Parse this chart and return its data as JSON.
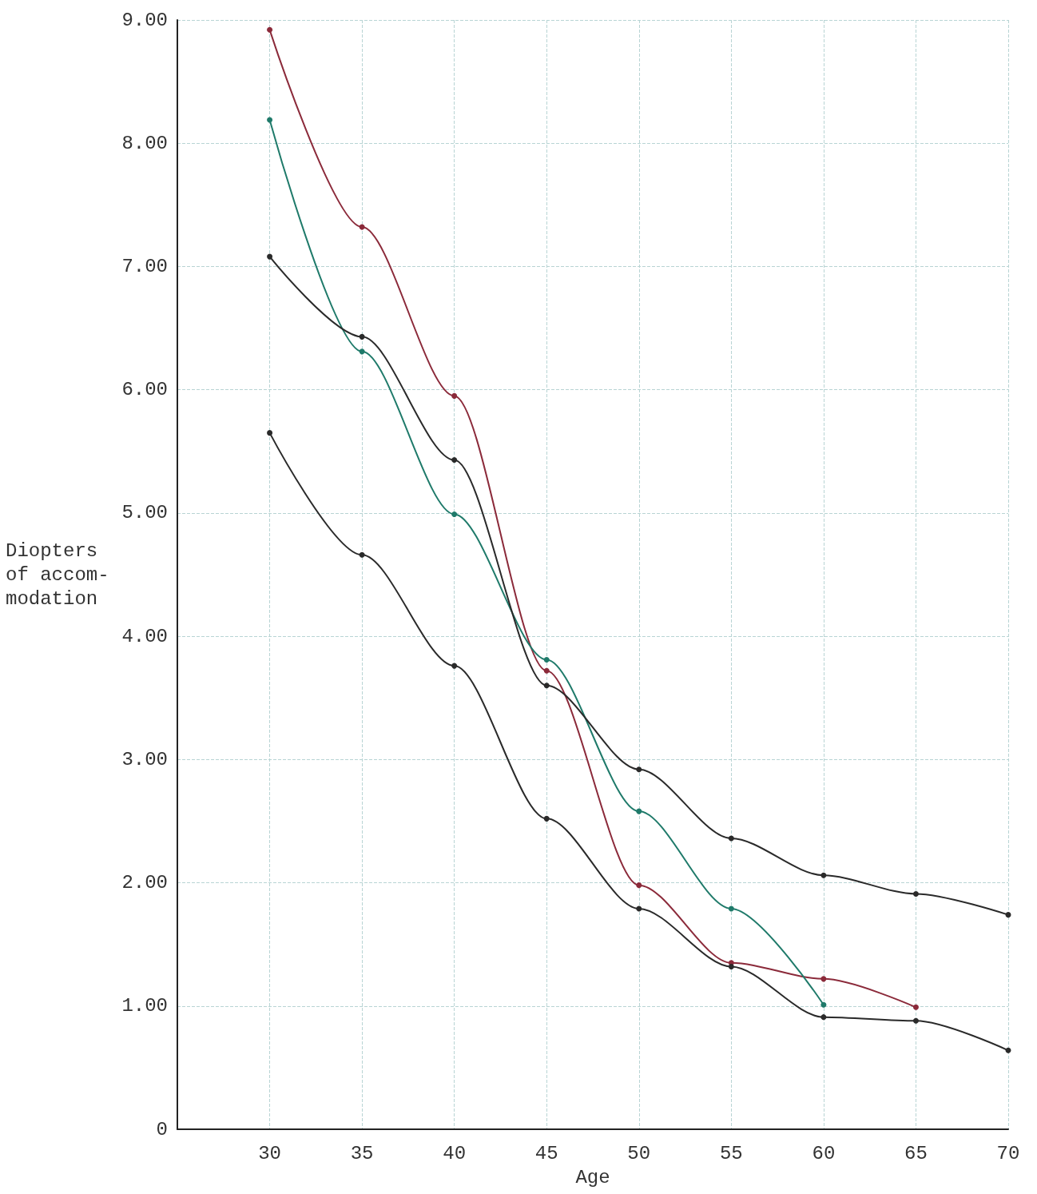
{
  "chart_data": {
    "type": "line",
    "xlabel": "Age",
    "ylabel": "Diopters\nof accom-\nmodation",
    "xlim": [
      25,
      70
    ],
    "xticks": [
      30,
      35,
      40,
      45,
      50,
      55,
      60,
      65,
      70
    ],
    "ylim": [
      0,
      9
    ],
    "yticks": [
      0,
      {
        "value": 1,
        "label": "1.00"
      },
      {
        "value": 2,
        "label": "2.00"
      },
      {
        "value": 3,
        "label": "3.00"
      },
      {
        "value": 4,
        "label": "4.00"
      },
      {
        "value": 5,
        "label": "5.00"
      },
      {
        "value": 6,
        "label": "6.00"
      },
      {
        "value": 7,
        "label": "7.00"
      },
      {
        "value": 8,
        "label": "8.00"
      },
      {
        "value": 9,
        "label": "9.00"
      }
    ],
    "grid": true,
    "marker": "circle",
    "line_style": "solid",
    "series": [
      {
        "color": "#8b2a3a",
        "x": [
          30,
          35,
          40,
          45,
          50,
          55,
          60,
          65
        ],
        "values": [
          8.92,
          7.32,
          5.95,
          3.72,
          1.98,
          1.35,
          1.22,
          0.99
        ]
      },
      {
        "color": "#1f7a6a",
        "x": [
          30,
          35,
          40,
          45,
          50,
          55,
          60
        ],
        "values": [
          8.19,
          6.31,
          4.99,
          3.81,
          2.58,
          1.79,
          1.01
        ]
      },
      {
        "color": "#2a2a2a",
        "x": [
          30,
          35,
          40,
          45,
          50,
          55,
          60,
          65,
          70
        ],
        "values": [
          7.08,
          6.43,
          5.43,
          3.6,
          2.92,
          2.36,
          2.06,
          1.91,
          1.74
        ]
      },
      {
        "color": "#2a2a2a",
        "x": [
          30,
          35,
          40,
          45,
          50,
          55,
          60,
          65,
          70
        ],
        "values": [
          5.65,
          4.66,
          3.76,
          2.52,
          1.79,
          1.32,
          0.91,
          0.88,
          0.64
        ]
      }
    ]
  }
}
